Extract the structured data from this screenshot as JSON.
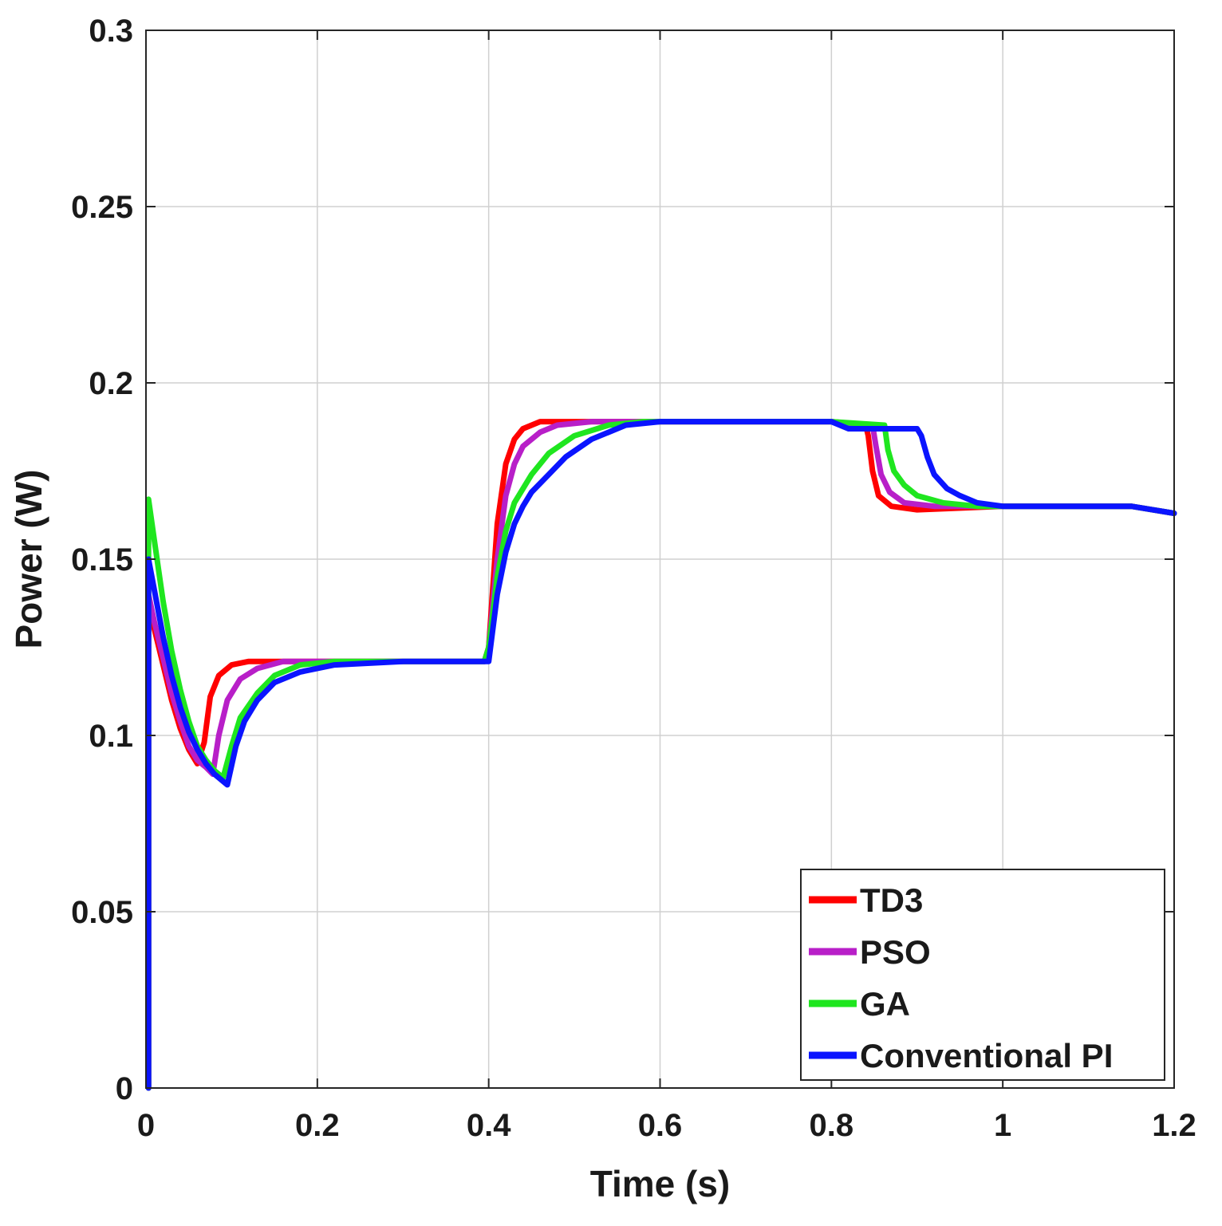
{
  "chart_data": {
    "type": "line",
    "title": "",
    "xlabel": "Time (s)",
    "ylabel": "Power (W)",
    "xlim": [
      0,
      1.2
    ],
    "ylim": [
      0,
      0.3
    ],
    "grid": true,
    "legend_position": "bottom-right",
    "xticks": [
      0,
      0.2,
      0.4,
      0.6,
      0.8,
      1,
      1.2
    ],
    "xtick_labels": [
      "0",
      "0.2",
      "0.4",
      "0.6",
      "0.8",
      "1",
      "1.2"
    ],
    "yticks": [
      0,
      0.05,
      0.1,
      0.15,
      0.2,
      0.25,
      0.3
    ],
    "ytick_labels": [
      "0",
      "0.05",
      "0.1",
      "0.15",
      "0.2",
      "0.25",
      "0.3"
    ],
    "series": [
      {
        "name": "TD3",
        "color": "#ff0000",
        "points": [
          [
            0.003,
            0
          ],
          [
            0.003,
            0.138
          ],
          [
            0.01,
            0.13
          ],
          [
            0.02,
            0.12
          ],
          [
            0.03,
            0.11
          ],
          [
            0.04,
            0.102
          ],
          [
            0.05,
            0.096
          ],
          [
            0.06,
            0.092
          ],
          [
            0.068,
            0.098
          ],
          [
            0.075,
            0.111
          ],
          [
            0.085,
            0.117
          ],
          [
            0.1,
            0.12
          ],
          [
            0.12,
            0.121
          ],
          [
            0.2,
            0.121
          ],
          [
            0.395,
            0.121
          ],
          [
            0.4,
            0.125
          ],
          [
            0.41,
            0.16
          ],
          [
            0.42,
            0.177
          ],
          [
            0.43,
            0.184
          ],
          [
            0.44,
            0.187
          ],
          [
            0.46,
            0.189
          ],
          [
            0.5,
            0.189
          ],
          [
            0.8,
            0.189
          ],
          [
            0.84,
            0.188
          ],
          [
            0.843,
            0.185
          ],
          [
            0.848,
            0.175
          ],
          [
            0.855,
            0.168
          ],
          [
            0.87,
            0.165
          ],
          [
            0.9,
            0.164
          ],
          [
            1.0,
            0.165
          ],
          [
            1.15,
            0.165
          ],
          [
            1.2,
            0.163
          ]
        ]
      },
      {
        "name": "PSO",
        "color": "#b81fc8",
        "points": [
          [
            0.003,
            0
          ],
          [
            0.003,
            0.14
          ],
          [
            0.01,
            0.132
          ],
          [
            0.02,
            0.122
          ],
          [
            0.03,
            0.112
          ],
          [
            0.04,
            0.104
          ],
          [
            0.05,
            0.097
          ],
          [
            0.06,
            0.093
          ],
          [
            0.07,
            0.091
          ],
          [
            0.078,
            0.089
          ],
          [
            0.085,
            0.1
          ],
          [
            0.095,
            0.11
          ],
          [
            0.11,
            0.116
          ],
          [
            0.13,
            0.119
          ],
          [
            0.16,
            0.121
          ],
          [
            0.2,
            0.121
          ],
          [
            0.395,
            0.121
          ],
          [
            0.4,
            0.125
          ],
          [
            0.41,
            0.15
          ],
          [
            0.42,
            0.168
          ],
          [
            0.43,
            0.177
          ],
          [
            0.44,
            0.182
          ],
          [
            0.46,
            0.186
          ],
          [
            0.48,
            0.188
          ],
          [
            0.52,
            0.189
          ],
          [
            0.8,
            0.189
          ],
          [
            0.848,
            0.188
          ],
          [
            0.852,
            0.182
          ],
          [
            0.858,
            0.174
          ],
          [
            0.868,
            0.169
          ],
          [
            0.885,
            0.166
          ],
          [
            0.92,
            0.165
          ],
          [
            1.0,
            0.165
          ],
          [
            1.15,
            0.165
          ],
          [
            1.2,
            0.163
          ]
        ]
      },
      {
        "name": "GA",
        "color": "#1fe61f",
        "points": [
          [
            0.003,
            0
          ],
          [
            0.003,
            0.167
          ],
          [
            0.01,
            0.155
          ],
          [
            0.02,
            0.138
          ],
          [
            0.03,
            0.124
          ],
          [
            0.04,
            0.113
          ],
          [
            0.05,
            0.104
          ],
          [
            0.06,
            0.097
          ],
          [
            0.07,
            0.093
          ],
          [
            0.08,
            0.09
          ],
          [
            0.09,
            0.088
          ],
          [
            0.1,
            0.097
          ],
          [
            0.11,
            0.105
          ],
          [
            0.13,
            0.112
          ],
          [
            0.15,
            0.117
          ],
          [
            0.18,
            0.12
          ],
          [
            0.22,
            0.121
          ],
          [
            0.395,
            0.121
          ],
          [
            0.4,
            0.125
          ],
          [
            0.41,
            0.145
          ],
          [
            0.42,
            0.158
          ],
          [
            0.43,
            0.166
          ],
          [
            0.45,
            0.174
          ],
          [
            0.47,
            0.18
          ],
          [
            0.5,
            0.185
          ],
          [
            0.54,
            0.188
          ],
          [
            0.58,
            0.189
          ],
          [
            0.8,
            0.189
          ],
          [
            0.862,
            0.188
          ],
          [
            0.866,
            0.181
          ],
          [
            0.873,
            0.175
          ],
          [
            0.885,
            0.171
          ],
          [
            0.9,
            0.168
          ],
          [
            0.93,
            0.166
          ],
          [
            0.97,
            0.165
          ],
          [
            1.0,
            0.165
          ],
          [
            1.15,
            0.165
          ],
          [
            1.2,
            0.163
          ]
        ]
      },
      {
        "name": "Conventional PI",
        "color": "#0a14ff",
        "points": [
          [
            0.003,
            0
          ],
          [
            0.003,
            0.15
          ],
          [
            0.01,
            0.141
          ],
          [
            0.02,
            0.128
          ],
          [
            0.03,
            0.117
          ],
          [
            0.04,
            0.108
          ],
          [
            0.05,
            0.101
          ],
          [
            0.06,
            0.096
          ],
          [
            0.07,
            0.092
          ],
          [
            0.08,
            0.089
          ],
          [
            0.09,
            0.087
          ],
          [
            0.095,
            0.086
          ],
          [
            0.105,
            0.097
          ],
          [
            0.115,
            0.104
          ],
          [
            0.13,
            0.11
          ],
          [
            0.15,
            0.115
          ],
          [
            0.18,
            0.118
          ],
          [
            0.22,
            0.12
          ],
          [
            0.3,
            0.121
          ],
          [
            0.395,
            0.121
          ],
          [
            0.4,
            0.121
          ],
          [
            0.41,
            0.14
          ],
          [
            0.42,
            0.152
          ],
          [
            0.43,
            0.16
          ],
          [
            0.44,
            0.165
          ],
          [
            0.45,
            0.169
          ],
          [
            0.47,
            0.174
          ],
          [
            0.49,
            0.179
          ],
          [
            0.52,
            0.184
          ],
          [
            0.56,
            0.188
          ],
          [
            0.6,
            0.189
          ],
          [
            0.8,
            0.189
          ],
          [
            0.82,
            0.187
          ],
          [
            0.9,
            0.187
          ],
          [
            0.905,
            0.185
          ],
          [
            0.912,
            0.179
          ],
          [
            0.92,
            0.174
          ],
          [
            0.935,
            0.17
          ],
          [
            0.95,
            0.168
          ],
          [
            0.97,
            0.166
          ],
          [
            1.0,
            0.165
          ],
          [
            1.15,
            0.165
          ],
          [
            1.2,
            0.163
          ]
        ]
      }
    ]
  }
}
